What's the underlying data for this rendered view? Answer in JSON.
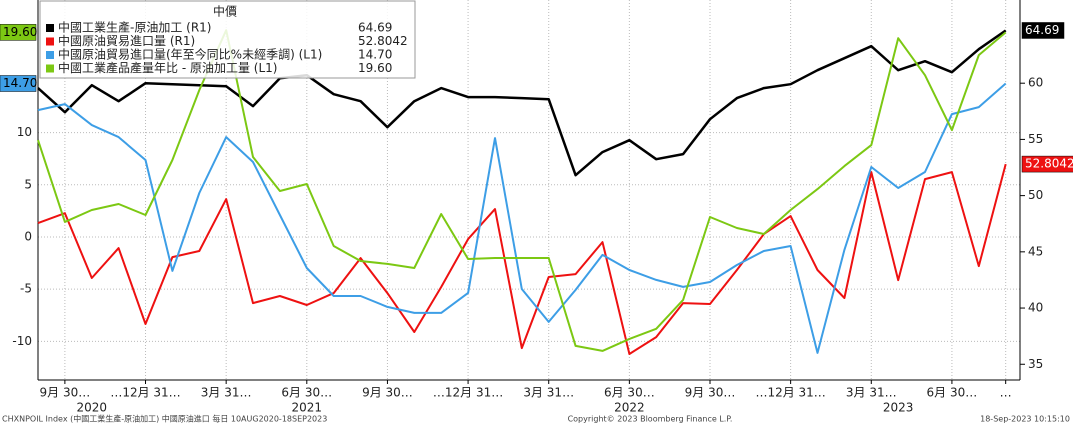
{
  "chart_data": {
    "type": "line",
    "legend_title": "中價",
    "categories": [
      null,
      "9月 30…",
      null,
      null,
      "…12月 31…",
      null,
      null,
      "3月 31…",
      null,
      null,
      "6月 30…",
      null,
      null,
      "9月 30…",
      null,
      null,
      "…12月 31…",
      null,
      null,
      "3月 31…",
      null,
      null,
      "6月 30…",
      null,
      null,
      "9月 30…",
      null,
      null,
      "…12月 31…",
      null,
      null,
      "3月 31…",
      null,
      null,
      "6月 30…",
      null,
      "…"
    ],
    "year_labels": [
      "2020",
      "2021",
      "2022",
      "2023"
    ],
    "series": [
      {
        "name": "中國工業生產-原油加工 (R1)",
        "color": "#000000",
        "axis": "y2",
        "values": [
          59.56,
          57.42,
          59.82,
          58.4,
          60.0,
          59.91,
          59.82,
          59.73,
          57.96,
          60.44,
          60.71,
          59.02,
          58.4,
          56.09,
          58.4,
          59.56,
          58.76,
          58.76,
          58.67,
          58.58,
          51.82,
          53.87,
          54.93,
          53.24,
          53.69,
          56.8,
          58.67,
          59.56,
          59.91,
          61.16,
          62.22,
          63.29,
          61.16,
          61.96,
          60.98,
          63.02,
          64.69
        ],
        "value_labels": [
          null,
          null,
          null,
          null,
          null,
          null,
          null,
          null,
          null,
          null,
          null,
          null,
          null,
          null,
          null,
          null,
          null,
          null,
          null,
          null,
          null,
          null,
          null,
          null,
          null,
          null,
          null,
          null,
          null,
          null,
          null,
          null,
          null,
          null,
          null,
          null,
          "64.69"
        ]
      },
      {
        "name": "中國原油貿易進口量 (R1)",
        "color": "#ee1111",
        "axis": "y2",
        "values": [
          47.56,
          48.44,
          42.67,
          45.33,
          38.58,
          44.53,
          45.07,
          49.69,
          40.44,
          41.07,
          40.27,
          41.33,
          44.44,
          41.33,
          37.87,
          41.87,
          46.13,
          48.8,
          36.44,
          42.76,
          43.02,
          45.87,
          35.91,
          37.42,
          40.44,
          40.36,
          43.38,
          46.58,
          48.18,
          43.38,
          40.89,
          52.09,
          42.49,
          51.47,
          52.09,
          43.73,
          52.8042
        ],
        "value_labels": [
          null,
          null,
          null,
          null,
          null,
          null,
          null,
          null,
          null,
          null,
          null,
          null,
          null,
          null,
          null,
          null,
          null,
          null,
          null,
          null,
          null,
          null,
          null,
          null,
          null,
          null,
          null,
          null,
          null,
          null,
          null,
          null,
          null,
          null,
          null,
          null,
          "52.8042"
        ]
      },
      {
        "name": "中國原油貿易進口量(年至今同比%未經季調) (L1)",
        "color": "#3d9ee6",
        "axis": "y",
        "values": [
          12.15,
          12.73,
          10.72,
          9.57,
          7.37,
          -3.25,
          4.21,
          9.57,
          7.18,
          2.11,
          -2.97,
          -5.65,
          -5.65,
          -6.7,
          -7.27,
          -7.27,
          -5.36,
          9.47,
          -4.98,
          -8.13,
          -5.07,
          -1.72,
          -3.16,
          -4.11,
          -4.78,
          -4.31,
          -2.68,
          -1.34,
          -0.86,
          -11.1,
          -1.24,
          6.7,
          4.69,
          6.22,
          11.77,
          12.44,
          14.7
        ],
        "value_labels": [
          null,
          null,
          null,
          null,
          null,
          null,
          null,
          null,
          null,
          null,
          null,
          null,
          null,
          null,
          null,
          null,
          null,
          null,
          null,
          null,
          null,
          null,
          null,
          null,
          null,
          null,
          null,
          null,
          null,
          null,
          null,
          null,
          null,
          null,
          null,
          null,
          "14.70"
        ]
      },
      {
        "name": "中國工業產品產量年比 - 原油加工量 (L1)",
        "color": "#7cc813",
        "axis": "y",
        "values": [
          9.28,
          1.44,
          2.58,
          3.16,
          2.11,
          7.37,
          14.07,
          19.81,
          7.66,
          4.4,
          5.07,
          -0.86,
          -2.3,
          -2.58,
          -2.97,
          2.2,
          -2.11,
          -2.01,
          -2.01,
          -2.01,
          -10.43,
          -10.91,
          -9.76,
          -8.8,
          -6.03,
          1.91,
          0.86,
          0.29,
          2.58,
          4.59,
          6.79,
          8.8,
          19.04,
          15.5,
          10.24,
          17.42,
          19.6
        ],
        "value_labels": [
          null,
          null,
          null,
          null,
          null,
          null,
          null,
          null,
          null,
          null,
          null,
          null,
          null,
          null,
          null,
          null,
          null,
          null,
          null,
          null,
          null,
          null,
          null,
          null,
          null,
          null,
          null,
          null,
          null,
          null,
          null,
          null,
          null,
          null,
          null,
          null,
          "19.60"
        ]
      }
    ],
    "ylim": [
      -13.7,
      22.7
    ],
    "yticks": [
      -10,
      -5,
      0,
      5,
      10
    ],
    "y2lim": [
      33.6,
      67.4
    ],
    "y2ticks": [
      35,
      40,
      45,
      50,
      55,
      60
    ],
    "grid": true,
    "legend": "upper left"
  },
  "footer": {
    "left": "CHXNPOIL Index (中國工業生產-原油加工) 中國原油進口 每日 10AUG2020-18SEP2023",
    "center": "Copyright© 2023 Bloomberg Finance L.P.",
    "right": "18-Sep-2023 10:15:10"
  }
}
